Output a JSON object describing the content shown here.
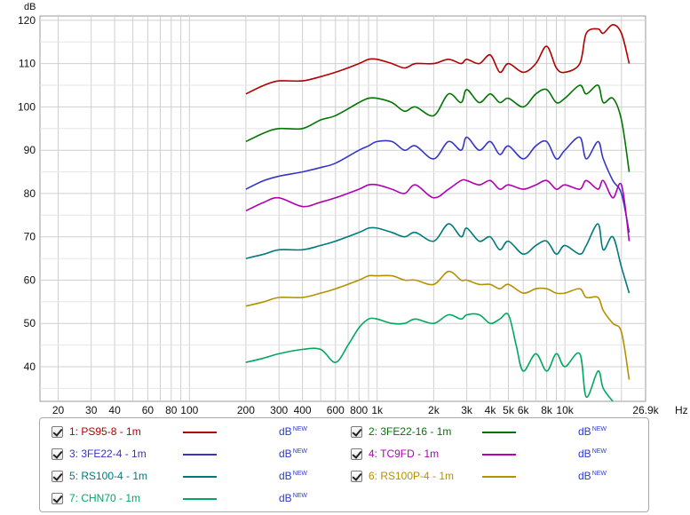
{
  "chart_data": {
    "type": "line",
    "ylabel": "dB",
    "x_unit_label": "Hz",
    "ylim": [
      32,
      121
    ],
    "xlim": [
      16,
      26900
    ],
    "x_scale": "log",
    "grid": true,
    "y_ticks": [
      40,
      50,
      60,
      70,
      80,
      90,
      100,
      110,
      120
    ],
    "x_ticks": [
      {
        "v": 20,
        "label": "20"
      },
      {
        "v": 30,
        "label": "30"
      },
      {
        "v": 40,
        "label": "40"
      },
      {
        "v": 60,
        "label": "60"
      },
      {
        "v": 80,
        "label": "80"
      },
      {
        "v": 100,
        "label": "100"
      },
      {
        "v": 200,
        "label": "200"
      },
      {
        "v": 300,
        "label": "300"
      },
      {
        "v": 400,
        "label": "400"
      },
      {
        "v": 600,
        "label": "600"
      },
      {
        "v": 800,
        "label": "800"
      },
      {
        "v": 1000,
        "label": "1k"
      },
      {
        "v": 2000,
        "label": "2k"
      },
      {
        "v": 3000,
        "label": "3k"
      },
      {
        "v": 4000,
        "label": "4k"
      },
      {
        "v": 5000,
        "label": "5k"
      },
      {
        "v": 6000,
        "label": "6k"
      },
      {
        "v": 8000,
        "label": "8k"
      },
      {
        "v": 10000,
        "label": "10k"
      },
      {
        "v": 26900,
        "label": "26.9k"
      }
    ],
    "series": [
      {
        "name": "1: PS95-8 - 1m",
        "color": "#b00000",
        "x": [
          200,
          250,
          300,
          400,
          500,
          600,
          800,
          900,
          1000,
          1200,
          1400,
          1600,
          2000,
          2400,
          2800,
          3000,
          3500,
          4000,
          4500,
          5000,
          6000,
          7000,
          8000,
          9000,
          10000,
          12000,
          13000,
          15000,
          16000,
          18000,
          20000,
          22000
        ],
        "values": [
          103,
          105,
          106,
          106,
          107,
          108,
          110,
          111,
          111,
          110,
          109,
          110,
          110,
          111,
          110,
          111,
          110,
          112,
          108,
          110,
          108,
          110,
          114,
          109,
          108,
          110,
          117,
          118,
          117,
          119,
          117,
          110
        ]
      },
      {
        "name": "2: 3FE22-16 - 1m",
        "color": "#007500",
        "x": [
          200,
          250,
          300,
          400,
          500,
          600,
          800,
          900,
          1000,
          1200,
          1400,
          1600,
          2000,
          2400,
          2800,
          3000,
          3500,
          4000,
          4500,
          5000,
          6000,
          7000,
          8000,
          9000,
          10000,
          12000,
          13000,
          15000,
          16000,
          18000,
          20000,
          22000
        ],
        "values": [
          92,
          94,
          95,
          95,
          97,
          98,
          101,
          102,
          102,
          101,
          99,
          100,
          98,
          103,
          101,
          104,
          101,
          103,
          101,
          102,
          100,
          103,
          104,
          101,
          102,
          105,
          103,
          105,
          101,
          102,
          97,
          85
        ]
      },
      {
        "name": "3: 3FE22-4 - 1m",
        "color": "#3535c8",
        "x": [
          200,
          250,
          300,
          400,
          500,
          600,
          800,
          900,
          1000,
          1200,
          1400,
          1600,
          2000,
          2400,
          2800,
          3000,
          3500,
          4000,
          4500,
          5000,
          6000,
          7000,
          8000,
          9000,
          10000,
          12000,
          13000,
          15000,
          16000,
          18000,
          20000,
          22000
        ],
        "values": [
          81,
          83,
          84,
          85,
          86,
          87,
          90,
          91,
          92,
          92,
          90,
          91,
          88,
          92,
          90,
          93,
          90,
          92,
          89,
          91,
          88,
          91,
          92,
          88,
          90,
          93,
          88,
          92,
          88,
          83,
          80,
          71
        ]
      },
      {
        "name": "4: TC9FD - 1m",
        "color": "#b000b0",
        "x": [
          200,
          250,
          300,
          400,
          500,
          600,
          800,
          900,
          1000,
          1200,
          1400,
          1600,
          2000,
          2400,
          2800,
          3000,
          3500,
          4000,
          4500,
          5000,
          6000,
          7000,
          8000,
          9000,
          10000,
          12000,
          13000,
          15000,
          16000,
          18000,
          20000,
          22000
        ],
        "values": [
          76,
          78,
          79,
          77,
          78,
          79,
          81,
          82,
          82,
          81,
          80,
          82,
          79,
          81,
          83,
          83,
          82,
          83,
          81,
          82,
          81,
          82,
          83,
          81,
          82,
          81,
          83,
          81,
          83,
          79,
          82,
          69
        ]
      },
      {
        "name": "5: RS100-4 - 1m",
        "color": "#007a7a",
        "x": [
          200,
          250,
          300,
          400,
          500,
          600,
          800,
          900,
          1000,
          1200,
          1400,
          1600,
          2000,
          2400,
          2800,
          3000,
          3500,
          4000,
          4500,
          5000,
          6000,
          7000,
          8000,
          9000,
          10000,
          12000,
          13000,
          15000,
          16000,
          18000,
          20000,
          22000
        ],
        "values": [
          65,
          66,
          67,
          67,
          68,
          69,
          71,
          72,
          72,
          71,
          70,
          71,
          69,
          73,
          70,
          72,
          69,
          70,
          67,
          69,
          66,
          68,
          69,
          66,
          68,
          66,
          68,
          73,
          67,
          70,
          63,
          57
        ]
      },
      {
        "name": "6: RS100P-4 - 1m",
        "color": "#b59000",
        "x": [
          200,
          250,
          300,
          400,
          500,
          600,
          800,
          900,
          1000,
          1200,
          1400,
          1600,
          2000,
          2400,
          2800,
          3000,
          3500,
          4000,
          4500,
          5000,
          6000,
          7000,
          8000,
          9000,
          10000,
          12000,
          13000,
          15000,
          16000,
          18000,
          20000,
          22000
        ],
        "values": [
          54,
          55,
          56,
          56,
          57,
          58,
          60,
          61,
          61,
          61,
          60,
          60,
          59,
          62,
          60,
          60,
          59,
          59,
          58,
          59,
          57,
          58,
          58,
          57,
          57,
          58,
          56,
          56,
          53,
          50,
          48,
          37
        ]
      },
      {
        "name": "7: CHN70 - 1m",
        "color": "#00a860",
        "x": [
          200,
          250,
          300,
          400,
          500,
          600,
          700,
          800,
          900,
          1000,
          1200,
          1400,
          1600,
          2000,
          2400,
          2800,
          3000,
          3500,
          4000,
          4500,
          5000,
          5500,
          6000,
          7000,
          8000,
          9000,
          10000,
          12000,
          13000,
          15000,
          16000,
          18000
        ],
        "values": [
          41,
          42,
          43,
          44,
          44,
          41,
          45,
          49,
          51,
          51,
          50,
          50,
          51,
          50,
          52,
          51,
          52,
          52,
          50,
          51,
          52,
          45,
          39,
          43,
          39,
          43,
          40,
          43,
          33,
          39,
          35,
          32
        ]
      }
    ]
  },
  "legend": [
    {
      "label": "1: PS95-8 - 1m",
      "color": "#b00000",
      "unit": "dB",
      "badge": "NEW",
      "checked": true
    },
    {
      "label": "2: 3FE22-16 - 1m",
      "color": "#007500",
      "unit": "dB",
      "badge": "NEW",
      "checked": true
    },
    {
      "label": "3: 3FE22-4 - 1m",
      "color": "#3535c8",
      "unit": "dB",
      "badge": "NEW",
      "checked": true
    },
    {
      "label": "4: TC9FD - 1m",
      "color": "#b000b0",
      "unit": "dB",
      "badge": "NEW",
      "checked": true
    },
    {
      "label": "5: RS100-4 - 1m",
      "color": "#007a7a",
      "unit": "dB",
      "badge": "NEW",
      "checked": true
    },
    {
      "label": "6: RS100P-4 - 1m",
      "color": "#b59000",
      "unit": "dB",
      "badge": "NEW",
      "checked": true
    },
    {
      "label": "7: CHN70 - 1m",
      "color": "#00a860",
      "unit": "dB",
      "badge": "NEW",
      "checked": true
    }
  ]
}
